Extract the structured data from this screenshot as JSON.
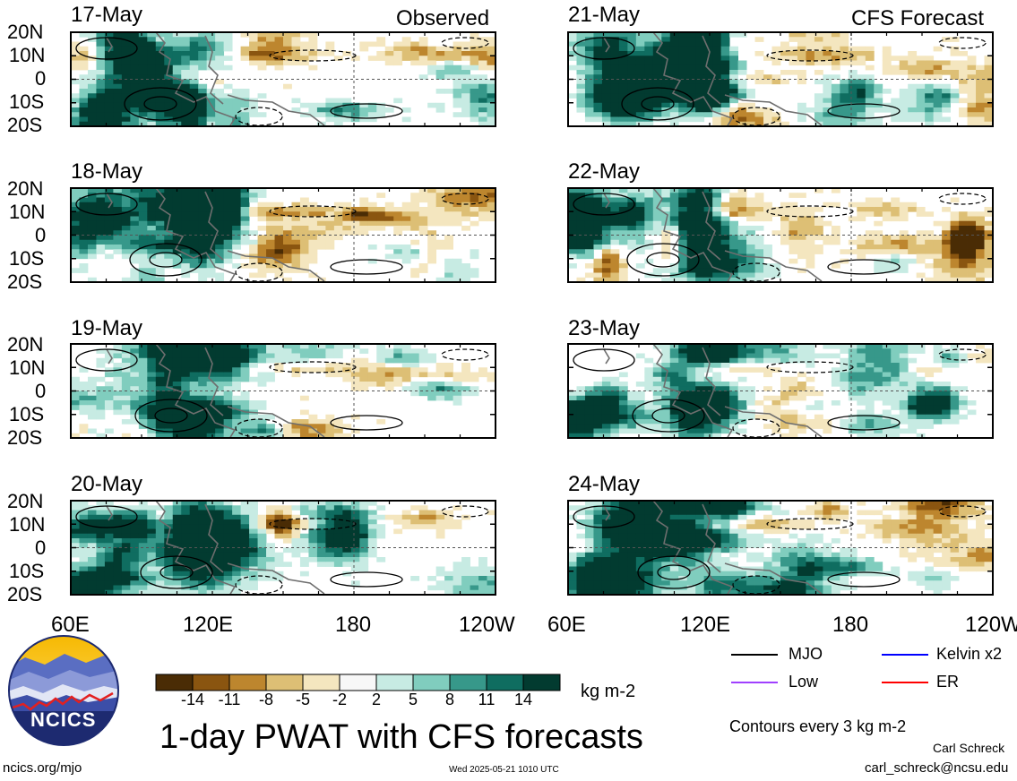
{
  "chart_data": {
    "type": "heatmap",
    "title": "1-day PWAT with CFS forecasts",
    "columns": [
      {
        "label": "Observed",
        "panels": [
          "17-May",
          "18-May",
          "19-May",
          "20-May"
        ]
      },
      {
        "label": "CFS Forecast",
        "panels": [
          "21-May",
          "22-May",
          "23-May",
          "24-May"
        ]
      }
    ],
    "x_ticks": [
      "60E",
      "120E",
      "180",
      "120W"
    ],
    "y_ticks": [
      "20N",
      "10N",
      "0",
      "10S",
      "20S"
    ],
    "xlim": [
      "60E",
      "120W"
    ],
    "ylim": [
      "20S",
      "20N"
    ],
    "colorbar": {
      "ticks": [
        "-14",
        "-11",
        "-8",
        "-5",
        "-2",
        "2",
        "5",
        "8",
        "11",
        "14"
      ],
      "unit": "kg m-2",
      "colors": [
        "#4a2c05",
        "#8a5510",
        "#bd862e",
        "#ddbf75",
        "#f4e6bf",
        "#f7f7f7",
        "#c7ebe3",
        "#80cdbe",
        "#37988a",
        "#0f6d60",
        "#023b30"
      ]
    },
    "legend": [
      {
        "label": "MJO",
        "color": "#000000"
      },
      {
        "label": "Kelvin x2",
        "color": "#0000ff"
      },
      {
        "label": "Low",
        "color": "#a040ff"
      },
      {
        "label": "ER",
        "color": "#ff0000"
      }
    ],
    "contour_note": "Contours every 3 kg m-2"
  },
  "footer": {
    "logo_text": "NCICS",
    "url": "ncics.org/mjo",
    "timestamp": "Wed 2025-05-21 1010 UTC",
    "author": "Carl Schreck",
    "email": "carl_schreck@ncsu.edu"
  }
}
